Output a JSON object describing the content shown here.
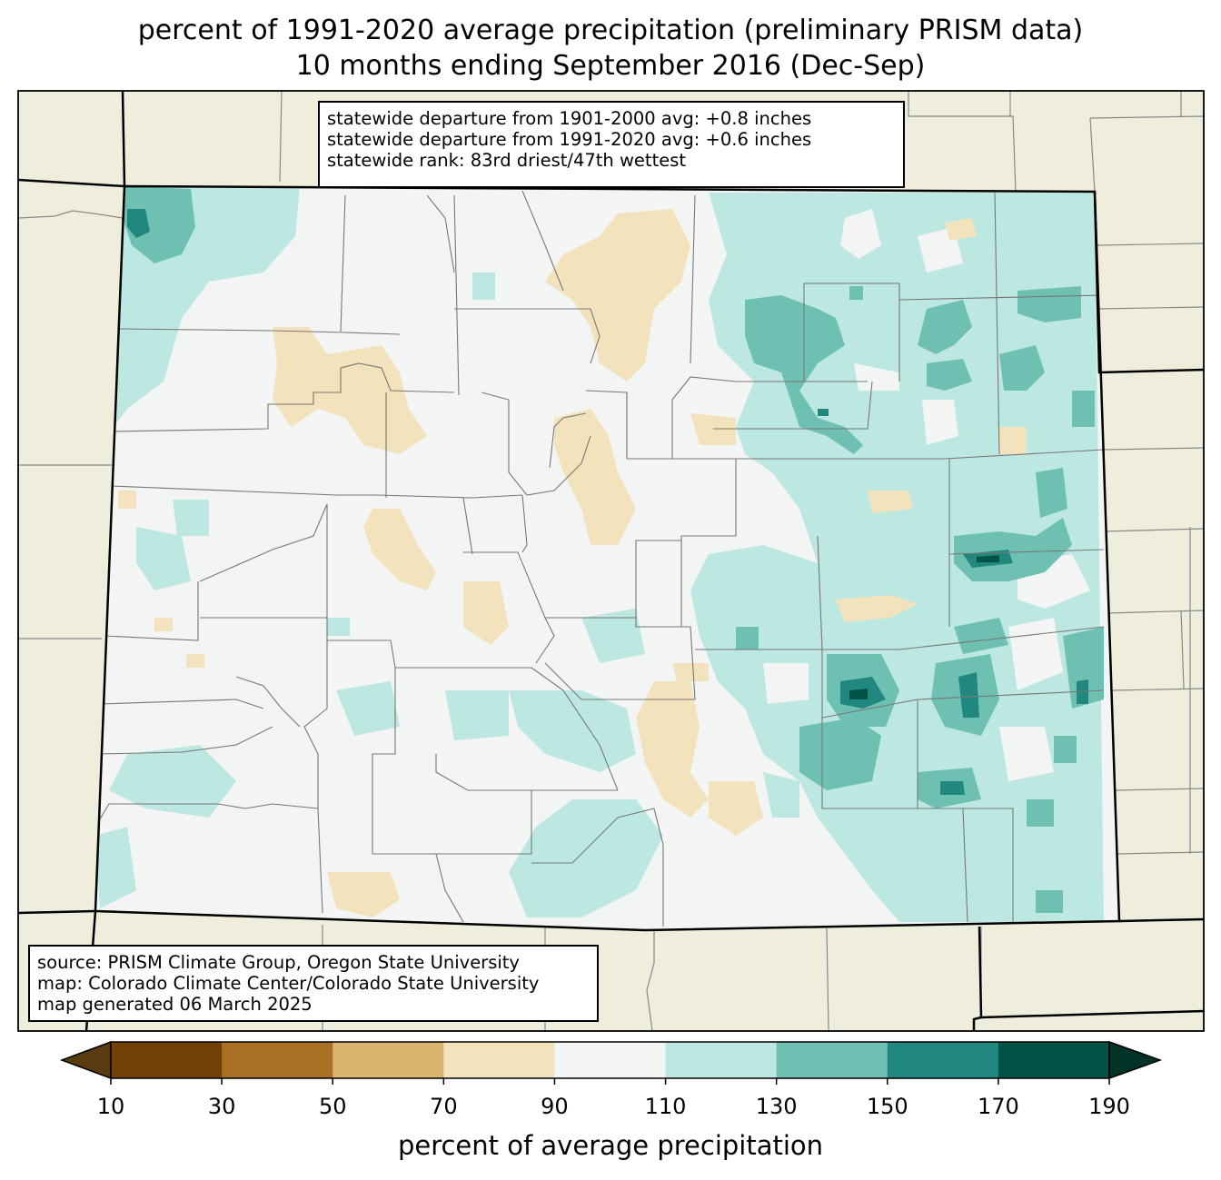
{
  "title": {
    "line1": "percent of 1991-2020 average precipitation (preliminary PRISM data)",
    "line2": "10 months ending September 2016 (Dec-Sep)"
  },
  "stats": {
    "line1": "statewide departure from 1901-2000 avg: +0.8 inches",
    "line2": "statewide departure from 1991-2020 avg: +0.6 inches",
    "line3": "statewide rank: 83rd driest/47th wettest"
  },
  "source": {
    "line1": "source: PRISM Climate Group, Oregon State University",
    "line2": "map: Colorado Climate Center/Colorado State University",
    "line3": "map generated 06 March 2025"
  },
  "colorbar": {
    "label": "percent of average precipitation",
    "ticks": [
      "10",
      "30",
      "50",
      "70",
      "90",
      "110",
      "130",
      "150",
      "170",
      "190"
    ],
    "colors": [
      "#5a3a10",
      "#714208",
      "#a86f25",
      "#d8b46f",
      "#f3e3bd",
      "#f3f5f4",
      "#bde7e1",
      "#6ec0b3",
      "#20887f",
      "#005346",
      "#013328"
    ]
  },
  "map_colors": {
    "land_outside": "#efeedc",
    "state_base": "#f3f5f4",
    "dry_70_90": "#f3e3bd",
    "wet_110_130": "#bde7e1",
    "wet_130_150": "#6ec0b3",
    "wet_150_170": "#20887f",
    "wet_170_190": "#005346"
  }
}
